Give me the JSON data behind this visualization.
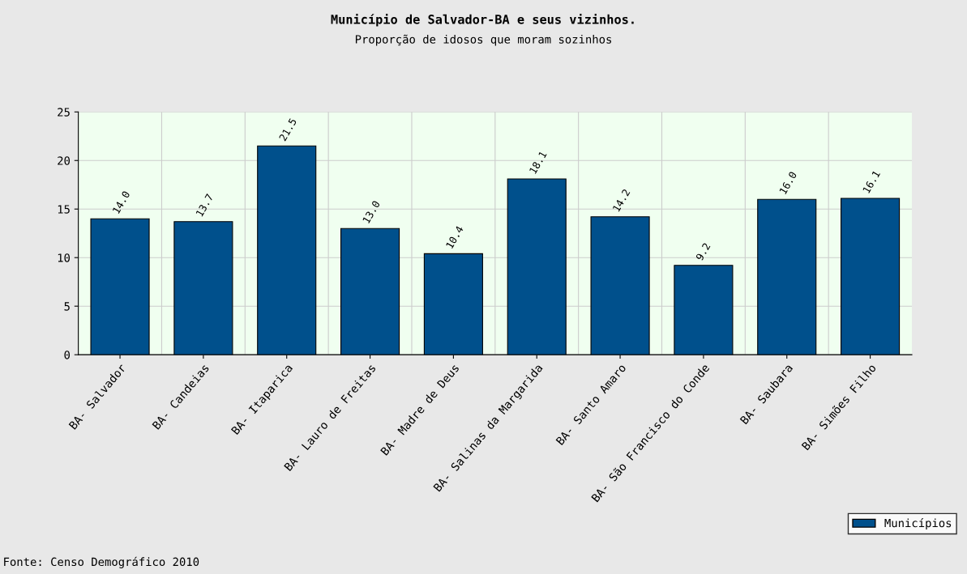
{
  "chart_data": {
    "type": "bar",
    "title": "Município de Salvador-BA e seus vizinhos.",
    "subtitle": "Proporção de idosos que moram sozinhos",
    "categories": [
      "BA- Salvador",
      "BA- Candeias",
      "BA- Itaparica",
      "BA- Lauro de Freitas",
      "BA- Madre de Deus",
      "BA- Salinas da Margarida",
      "BA- Santo Amaro",
      "BA- São Francisco do Conde",
      "BA- Saubara",
      "BA- Simões Filho"
    ],
    "series": [
      {
        "name": "Municípios",
        "color": "#00508c",
        "values": [
          14.0,
          13.7,
          21.5,
          13.0,
          10.4,
          18.1,
          14.2,
          9.2,
          16.0,
          16.1
        ],
        "value_labels": [
          "14.0",
          "13.7",
          "21.5",
          "13.0",
          "10.4",
          "18.1",
          "14.2",
          "9.2",
          "16.0",
          "16.1"
        ]
      }
    ],
    "ylim": [
      0,
      25
    ],
    "yticks": [
      0,
      5,
      10,
      15,
      20,
      25
    ],
    "grid": true,
    "legend": "bottom right",
    "annotations": [
      "Fonte: Censo Demográfico 2010"
    ]
  }
}
